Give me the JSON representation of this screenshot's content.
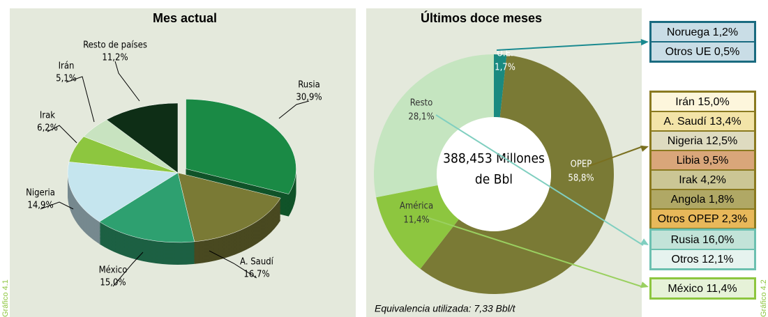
{
  "chart_data": [
    {
      "type": "pie",
      "title": "Mes actual",
      "side_label": "Gráfico 4.1",
      "categories": [
        "Rusia",
        "A. Saudí",
        "México",
        "Nigeria",
        "Irak",
        "Irán",
        "Resto de países"
      ],
      "values": [
        30.9,
        16.7,
        15.0,
        14.9,
        6.2,
        5.1,
        11.2
      ],
      "value_labels": [
        "30,9%",
        "16,7%",
        "15,0%",
        "14,9%",
        "6,2%",
        "5,1%",
        "11,2%"
      ],
      "colors": [
        "#1a8a45",
        "#7a7a35",
        "#2ea070",
        "#c5e5ee",
        "#8dc63f",
        "#c8e3c0",
        "#0e2e16"
      ]
    },
    {
      "type": "donut",
      "title": "Últimos doce meses",
      "side_label": "Gráfico 4.2",
      "center_text": [
        "388,453 Millones",
        "de Bbl"
      ],
      "note": "Equivalencia utilizada: 7,33 Bbl/t",
      "categories": [
        "U.E.",
        "OPEP",
        "América",
        "Resto"
      ],
      "values": [
        1.7,
        58.8,
        11.4,
        28.1
      ],
      "value_labels": [
        "1,7%",
        "58,8%",
        "11,4%",
        "28,1%"
      ],
      "colors": [
        "#1a8a80",
        "#7a7a35",
        "#8dc63f",
        "#c5e5c0"
      ],
      "boxes": [
        {
          "border": "#1a6b80",
          "items": [
            "Noruega 1,2%",
            "Otros UE 0,5%"
          ],
          "fills": [
            "#c9dde6",
            "#c9dde6"
          ]
        },
        {
          "border": "#8a7a20",
          "items": [
            "Irán 15,0%",
            "A. Saudí 13,4%",
            "Nigeria 12,5%",
            "Libia 9,5%",
            "Irak 4,2%",
            "Angola 1,8%",
            "Otros OPEP 2,3%"
          ],
          "fills": [
            "#fdf6dc",
            "#f3e4a8",
            "#dedbc0",
            "#d9a67a",
            "#cbc695",
            "#b0a865",
            "#e8b85a"
          ]
        },
        {
          "border": "#6cc0b0",
          "items": [
            "Rusia 16,0%",
            "Otros 12,1%"
          ],
          "fills": [
            "#c2e3d8",
            "#e6f3ef"
          ]
        },
        {
          "border": "#8dc63f",
          "items": [
            "México 11,4%"
          ],
          "fills": [
            "#e6f2d8"
          ]
        }
      ]
    }
  ]
}
